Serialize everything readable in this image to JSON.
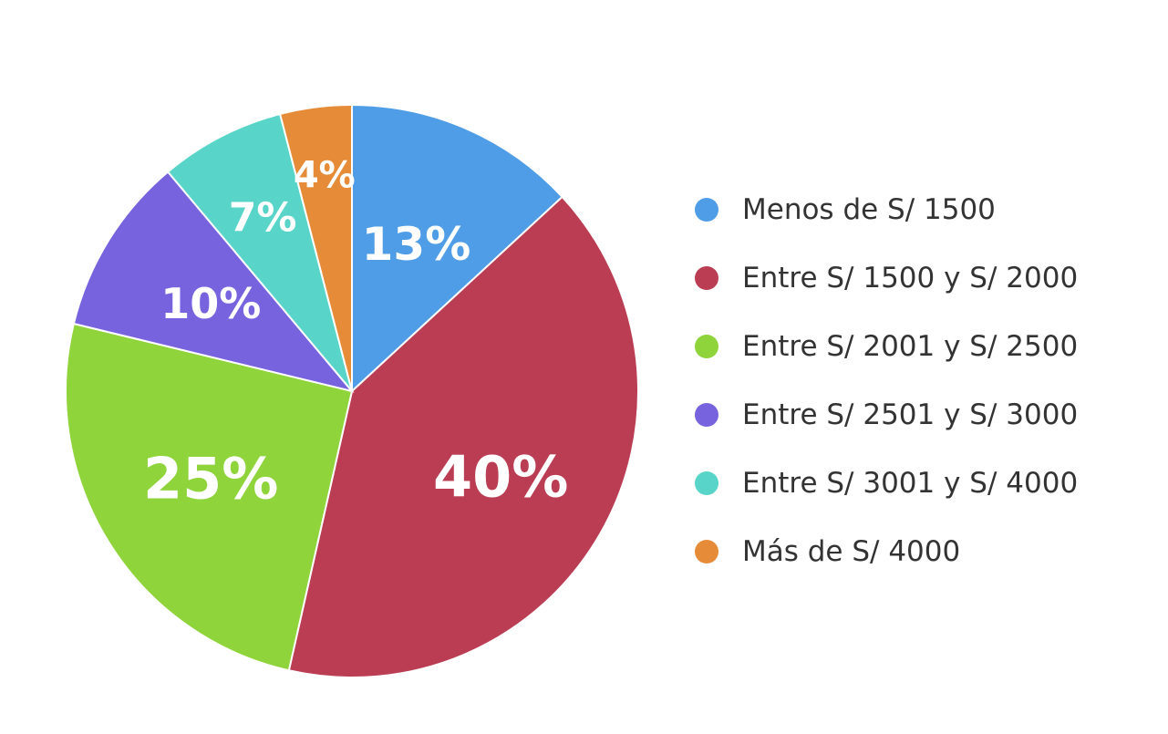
{
  "chart_data": {
    "type": "pie",
    "title": "",
    "slices": [
      {
        "label": "Menos de S/ 1500",
        "value": 13,
        "display": "13%",
        "color": "#4e9de6"
      },
      {
        "label": "Entre S/ 1500 y S/ 2000",
        "value": 40,
        "display": "40%",
        "color": "#bb3d54"
      },
      {
        "label": "Entre S/ 2001 y S/ 2500",
        "value": 25,
        "display": "25%",
        "color": "#8fd43b"
      },
      {
        "label": "Entre S/ 2501 y S/ 3000",
        "value": 10,
        "display": "10%",
        "color": "#7763de"
      },
      {
        "label": "Entre S/ 3001 y S/ 4000",
        "value": 7,
        "display": "7%",
        "color": "#58d5c8"
      },
      {
        "label": "Más de S/ 4000",
        "value": 4,
        "display": "4%",
        "color": "#e68c39"
      }
    ],
    "legend_position": "right"
  }
}
